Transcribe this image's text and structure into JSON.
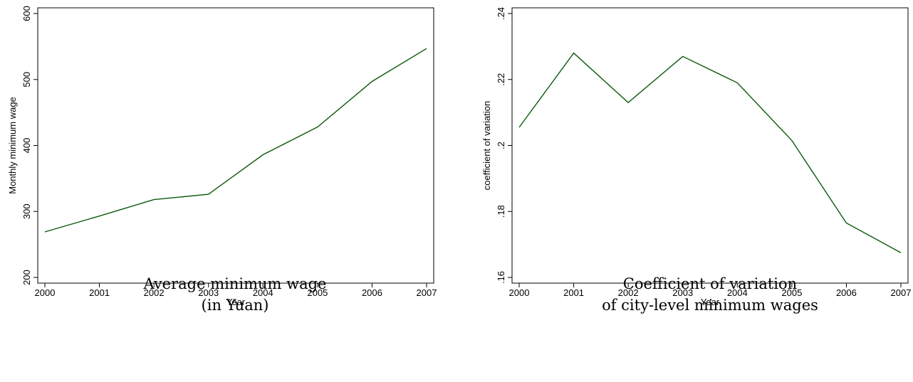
{
  "chart_data": [
    {
      "type": "line",
      "xlabel": "Year",
      "ylabel": "Monthly minimum wage",
      "x": [
        2000,
        2001,
        2002,
        2003,
        2004,
        2005,
        2006,
        2007
      ],
      "xticks": [
        "2000",
        "2001",
        "2002",
        "2003",
        "2004",
        "2005",
        "2006",
        "2007"
      ],
      "yticks": [
        "200",
        "300",
        "400",
        "500",
        "600"
      ],
      "ylim": [
        200,
        600
      ],
      "grid": false,
      "series": [
        {
          "values": [
            269,
            293,
            318,
            326,
            386,
            428,
            497,
            547
          ]
        }
      ],
      "color": "#0b5a0b",
      "caption": [
        "Average minimum wage",
        "(in Yuan)"
      ]
    },
    {
      "type": "line",
      "xlabel": "Year",
      "ylabel": "coefficient of variation",
      "x": [
        2000,
        2001,
        2002,
        2003,
        2004,
        2005,
        2006,
        2007
      ],
      "xticks": [
        "2000",
        "2001",
        "2002",
        "2003",
        "2004",
        "2005",
        "2006",
        "2007"
      ],
      "yticks": [
        ".16",
        ".18",
        ".2",
        ".22",
        ".24"
      ],
      "ylim": [
        0.16,
        0.24
      ],
      "grid": false,
      "series": [
        {
          "values": [
            0.2055,
            0.228,
            0.213,
            0.227,
            0.219,
            0.2015,
            0.1765,
            0.1675
          ]
        }
      ],
      "color": "#0b5a0b",
      "caption": [
        "Coefficient of variation",
        "of city-level minimum wages"
      ]
    }
  ]
}
